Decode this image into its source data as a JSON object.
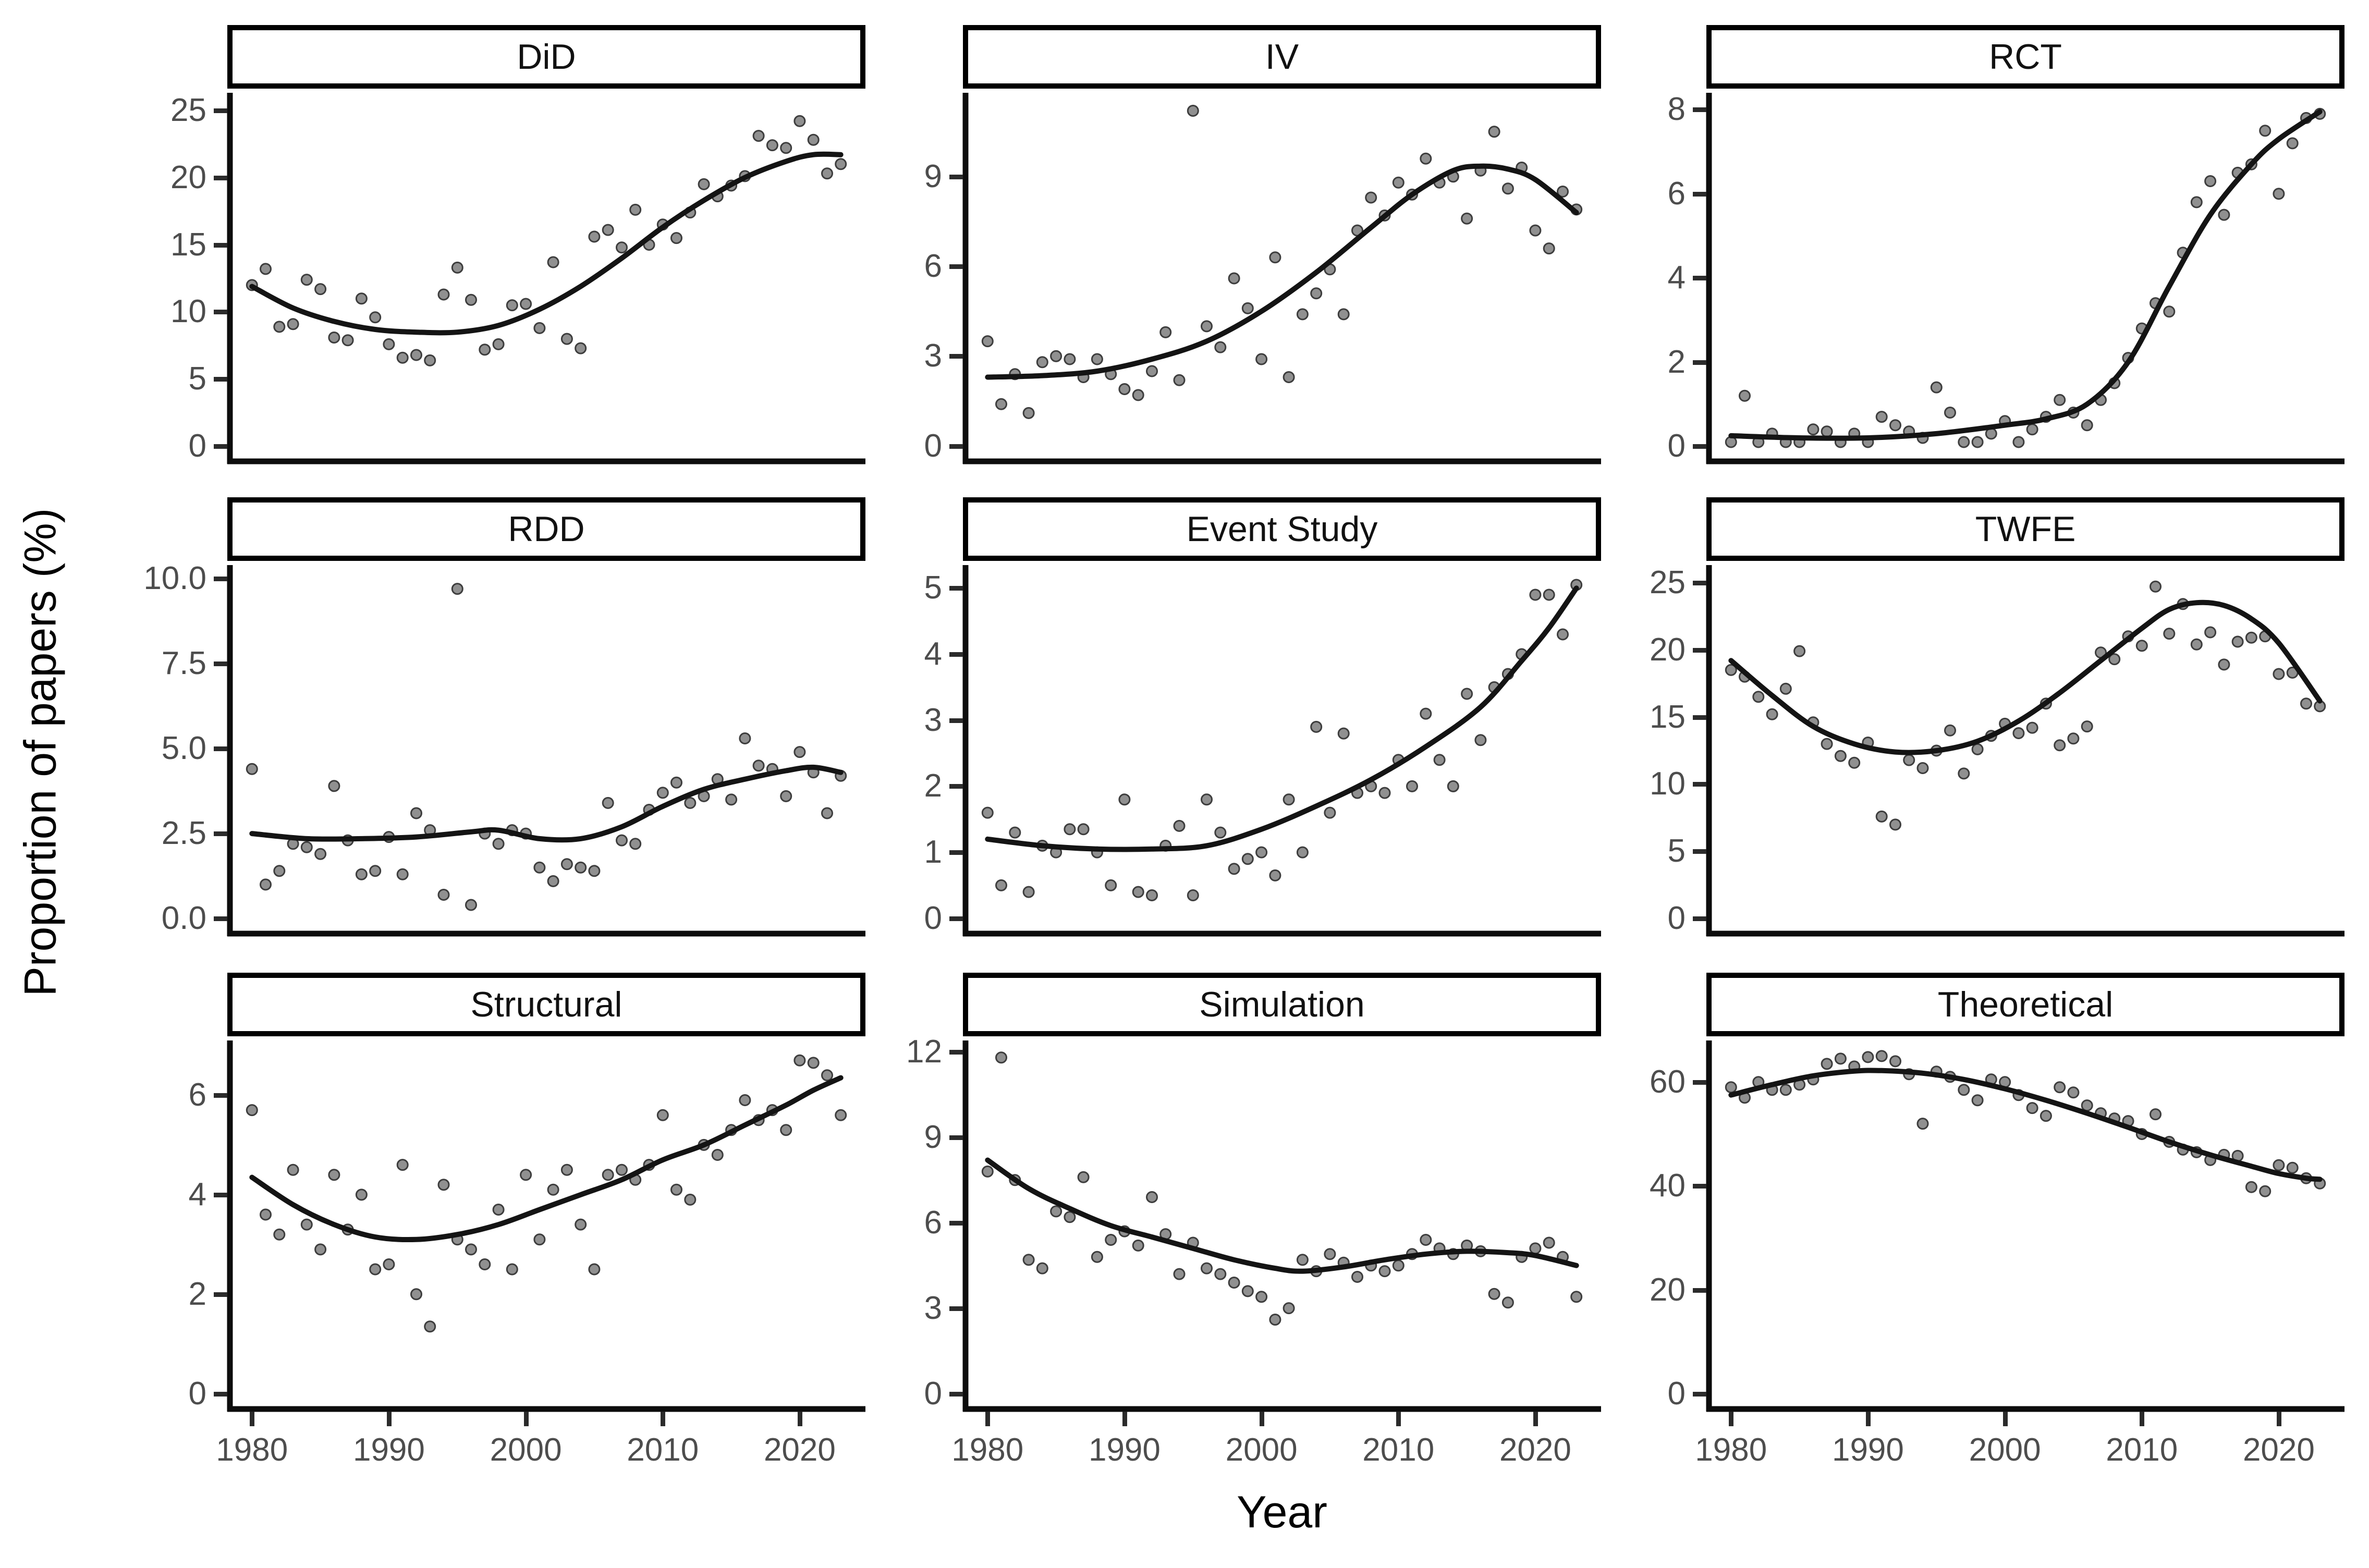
{
  "figure": {
    "y_axis_title": "Proportion of papers (%)",
    "x_axis_title": "Year",
    "colors": {
      "tick_label": "#4d4d4d",
      "tick_mark": "#2b2b2b",
      "axis_line": "#0d0d0d",
      "strip_border": "#000000",
      "strip_bg": "#ffffff",
      "strip_text": "#111111",
      "point_fill": "#8a8a8a",
      "point_stroke": "#3d3d3d",
      "smooth_line": "#141414",
      "background": "#ffffff"
    }
  },
  "chart_data": {
    "type": "scatter",
    "title": "",
    "xlabel": "Year",
    "ylabel": "Proportion of papers (%)",
    "grid": false,
    "legend": "none",
    "smoother": "loess",
    "facet_layout": "3x3",
    "x_ticks": [
      1980,
      1990,
      2000,
      2010,
      2020
    ],
    "xlim": [
      1978.2,
      2024.8
    ],
    "years": [
      1980,
      1981,
      1982,
      1983,
      1984,
      1985,
      1986,
      1987,
      1988,
      1989,
      1990,
      1991,
      1992,
      1993,
      1994,
      1995,
      1996,
      1997,
      1998,
      1999,
      2000,
      2001,
      2002,
      2003,
      2004,
      2005,
      2006,
      2007,
      2008,
      2009,
      2010,
      2011,
      2012,
      2013,
      2014,
      2015,
      2016,
      2017,
      2018,
      2019,
      2020,
      2021,
      2022,
      2023
    ],
    "facets": [
      {
        "label": "DiD",
        "y_ticks": [
          0,
          5,
          10,
          15,
          20,
          25
        ],
        "y_tick_labels": [
          "0",
          "5",
          "10",
          "15",
          "20",
          "25"
        ],
        "ylim": [
          -1.3,
          26.3
        ],
        "points": [
          12.0,
          13.2,
          8.9,
          9.1,
          12.4,
          11.7,
          8.1,
          7.9,
          11.0,
          9.6,
          7.6,
          6.6,
          6.8,
          6.4,
          11.3,
          13.3,
          10.9,
          7.2,
          7.6,
          10.5,
          10.6,
          8.8,
          13.7,
          8.0,
          7.3,
          15.6,
          16.1,
          14.8,
          17.6,
          15.0,
          16.5,
          15.5,
          17.4,
          19.5,
          18.6,
          19.4,
          20.1,
          23.1,
          22.4,
          22.2,
          24.2,
          22.8,
          20.3,
          21.0
        ],
        "curve": [
          [
            1980,
            11.9
          ],
          [
            1983,
            10.3
          ],
          [
            1986,
            9.3
          ],
          [
            1989,
            8.7
          ],
          [
            1992,
            8.5
          ],
          [
            1995,
            8.5
          ],
          [
            1998,
            9.0
          ],
          [
            2001,
            10.2
          ],
          [
            2004,
            11.9
          ],
          [
            2007,
            14.0
          ],
          [
            2010,
            16.3
          ],
          [
            2013,
            18.3
          ],
          [
            2016,
            20.0
          ],
          [
            2019,
            21.2
          ],
          [
            2021,
            21.7
          ],
          [
            2023,
            21.7
          ]
        ]
      },
      {
        "label": "IV",
        "y_ticks": [
          0,
          3,
          6,
          9
        ],
        "y_tick_labels": [
          "0",
          "3",
          "6",
          "9"
        ],
        "ylim": [
          -0.6,
          11.8
        ],
        "points": [
          3.5,
          1.4,
          2.4,
          1.1,
          2.8,
          3.0,
          2.9,
          2.3,
          2.9,
          2.4,
          1.9,
          1.7,
          2.5,
          3.8,
          2.2,
          11.2,
          4.0,
          3.3,
          5.6,
          4.6,
          2.9,
          6.3,
          2.3,
          4.4,
          5.1,
          5.9,
          4.4,
          7.2,
          8.3,
          7.7,
          8.8,
          8.4,
          9.6,
          8.8,
          9.0,
          7.6,
          9.2,
          10.5,
          8.6,
          9.3,
          7.2,
          6.6,
          8.5,
          7.9
        ],
        "curve": [
          [
            1980,
            2.3
          ],
          [
            1984,
            2.35
          ],
          [
            1988,
            2.5
          ],
          [
            1992,
            2.9
          ],
          [
            1996,
            3.5
          ],
          [
            2000,
            4.5
          ],
          [
            2004,
            5.8
          ],
          [
            2008,
            7.3
          ],
          [
            2011,
            8.4
          ],
          [
            2014,
            9.2
          ],
          [
            2016,
            9.35
          ],
          [
            2018,
            9.25
          ],
          [
            2020,
            8.9
          ],
          [
            2023,
            7.8
          ]
        ]
      },
      {
        "label": "RCT",
        "y_ticks": [
          0,
          2,
          4,
          6,
          8
        ],
        "y_tick_labels": [
          "0",
          "2",
          "4",
          "6",
          "8"
        ],
        "ylim": [
          -0.42,
          8.4
        ],
        "points": [
          0.1,
          1.2,
          0.1,
          0.3,
          0.1,
          0.1,
          0.4,
          0.35,
          0.1,
          0.3,
          0.1,
          0.7,
          0.5,
          0.35,
          0.2,
          1.4,
          0.8,
          0.1,
          0.1,
          0.3,
          0.6,
          0.1,
          0.4,
          0.7,
          1.1,
          0.8,
          0.5,
          1.1,
          1.5,
          2.1,
          2.8,
          3.4,
          3.2,
          4.6,
          5.8,
          6.3,
          5.5,
          6.5,
          6.7,
          7.5,
          6.0,
          7.2,
          7.8,
          7.9
        ],
        "curve": [
          [
            1980,
            0.25
          ],
          [
            1985,
            0.2
          ],
          [
            1990,
            0.2
          ],
          [
            1995,
            0.3
          ],
          [
            2000,
            0.5
          ],
          [
            2003,
            0.65
          ],
          [
            2006,
            1.0
          ],
          [
            2009,
            2.0
          ],
          [
            2012,
            3.8
          ],
          [
            2015,
            5.5
          ],
          [
            2018,
            6.7
          ],
          [
            2020,
            7.3
          ],
          [
            2023,
            7.95
          ]
        ]
      },
      {
        "label": "RDD",
        "y_ticks": [
          0,
          2.5,
          5,
          7.5,
          10
        ],
        "y_tick_labels": [
          "0.0",
          "2.5",
          "5.0",
          "7.5",
          "10.0"
        ],
        "ylim": [
          -0.52,
          10.4
        ],
        "points": [
          4.4,
          1.0,
          1.4,
          2.2,
          2.1,
          1.9,
          3.9,
          2.3,
          1.3,
          1.4,
          2.4,
          1.3,
          3.1,
          2.6,
          0.7,
          9.7,
          0.4,
          2.5,
          2.2,
          2.6,
          2.5,
          1.5,
          1.1,
          1.6,
          1.5,
          1.4,
          3.4,
          2.3,
          2.2,
          3.2,
          3.7,
          4.0,
          3.4,
          3.6,
          4.1,
          3.5,
          5.3,
          4.5,
          4.4,
          3.6,
          4.9,
          4.3,
          3.1,
          4.2
        ],
        "curve": [
          [
            1980,
            2.5
          ],
          [
            1984,
            2.35
          ],
          [
            1988,
            2.35
          ],
          [
            1992,
            2.4
          ],
          [
            1996,
            2.55
          ],
          [
            1998,
            2.6
          ],
          [
            2001,
            2.35
          ],
          [
            2004,
            2.35
          ],
          [
            2007,
            2.7
          ],
          [
            2010,
            3.3
          ],
          [
            2013,
            3.8
          ],
          [
            2016,
            4.1
          ],
          [
            2019,
            4.35
          ],
          [
            2021,
            4.45
          ],
          [
            2023,
            4.3
          ]
        ]
      },
      {
        "label": "Event Study",
        "y_ticks": [
          0,
          1,
          2,
          3,
          4,
          5
        ],
        "y_tick_labels": [
          "0",
          "1",
          "2",
          "3",
          "4",
          "5"
        ],
        "ylim": [
          -0.27,
          5.35
        ],
        "points": [
          1.6,
          0.5,
          1.3,
          0.4,
          1.1,
          1.0,
          1.35,
          1.35,
          1.0,
          0.5,
          1.8,
          0.4,
          0.35,
          1.1,
          1.4,
          0.35,
          1.8,
          1.3,
          0.75,
          0.9,
          1.0,
          0.65,
          1.8,
          1.0,
          2.9,
          1.6,
          2.8,
          1.9,
          2.0,
          1.9,
          2.4,
          2.0,
          3.1,
          2.4,
          2.0,
          3.4,
          2.7,
          3.5,
          3.7,
          4.0,
          4.9,
          4.9,
          4.3,
          5.05
        ],
        "curve": [
          [
            1980,
            1.2
          ],
          [
            1984,
            1.1
          ],
          [
            1988,
            1.05
          ],
          [
            1992,
            1.05
          ],
          [
            1996,
            1.1
          ],
          [
            2000,
            1.35
          ],
          [
            2004,
            1.7
          ],
          [
            2008,
            2.1
          ],
          [
            2012,
            2.6
          ],
          [
            2016,
            3.2
          ],
          [
            2019,
            3.9
          ],
          [
            2021,
            4.4
          ],
          [
            2023,
            5.0
          ]
        ]
      },
      {
        "label": "TWFE",
        "y_ticks": [
          0,
          5,
          10,
          15,
          20,
          25
        ],
        "y_tick_labels": [
          "0",
          "5",
          "10",
          "15",
          "20",
          "25"
        ],
        "ylim": [
          -1.3,
          26.3
        ],
        "points": [
          18.5,
          18.0,
          16.5,
          15.2,
          17.1,
          19.9,
          14.6,
          13.0,
          12.1,
          11.6,
          13.1,
          7.6,
          7.0,
          11.8,
          11.2,
          12.5,
          14.0,
          10.8,
          12.6,
          13.6,
          14.5,
          13.8,
          14.2,
          16.0,
          12.9,
          13.4,
          14.3,
          19.8,
          19.3,
          21.0,
          20.3,
          24.7,
          21.2,
          23.4,
          20.4,
          21.3,
          18.9,
          20.6,
          20.9,
          21.0,
          18.2,
          18.3,
          16.0,
          15.8
        ],
        "curve": [
          [
            1980,
            19.2
          ],
          [
            1983,
            16.6
          ],
          [
            1986,
            14.3
          ],
          [
            1989,
            13.0
          ],
          [
            1992,
            12.4
          ],
          [
            1995,
            12.5
          ],
          [
            1998,
            13.2
          ],
          [
            2001,
            14.7
          ],
          [
            2004,
            16.8
          ],
          [
            2007,
            19.2
          ],
          [
            2010,
            21.6
          ],
          [
            2012,
            23.0
          ],
          [
            2014,
            23.5
          ],
          [
            2016,
            23.3
          ],
          [
            2018,
            22.3
          ],
          [
            2020,
            20.5
          ],
          [
            2023,
            16.2
          ]
        ]
      },
      {
        "label": "Structural",
        "y_ticks": [
          0,
          2,
          4,
          6
        ],
        "y_tick_labels": [
          "0",
          "2",
          "4",
          "6"
        ],
        "ylim": [
          -0.36,
          7.1
        ],
        "points": [
          5.7,
          3.6,
          3.2,
          4.5,
          3.4,
          2.9,
          4.4,
          3.3,
          4.0,
          2.5,
          2.6,
          4.6,
          2.0,
          1.35,
          4.2,
          3.1,
          2.9,
          2.6,
          3.7,
          2.5,
          4.4,
          3.1,
          4.1,
          4.5,
          3.4,
          2.5,
          4.4,
          4.5,
          4.3,
          4.6,
          5.6,
          4.1,
          3.9,
          5.0,
          4.8,
          5.3,
          5.9,
          5.5,
          5.7,
          5.3,
          6.7,
          6.65,
          6.4,
          5.6
        ],
        "curve": [
          [
            1980,
            4.35
          ],
          [
            1983,
            3.8
          ],
          [
            1986,
            3.4
          ],
          [
            1989,
            3.15
          ],
          [
            1992,
            3.1
          ],
          [
            1995,
            3.2
          ],
          [
            1998,
            3.4
          ],
          [
            2001,
            3.7
          ],
          [
            2004,
            4.0
          ],
          [
            2007,
            4.3
          ],
          [
            2010,
            4.7
          ],
          [
            2013,
            5.0
          ],
          [
            2016,
            5.4
          ],
          [
            2019,
            5.8
          ],
          [
            2021,
            6.1
          ],
          [
            2023,
            6.35
          ]
        ]
      },
      {
        "label": "Simulation",
        "y_ticks": [
          0,
          3,
          6,
          9,
          12
        ],
        "y_tick_labels": [
          "0",
          "3",
          "6",
          "9",
          "12"
        ],
        "ylim": [
          -0.63,
          12.4
        ],
        "points": [
          7.8,
          11.8,
          7.5,
          4.7,
          4.4,
          6.4,
          6.2,
          7.6,
          4.8,
          5.4,
          5.7,
          5.2,
          6.9,
          5.6,
          4.2,
          5.3,
          4.4,
          4.2,
          3.9,
          3.6,
          3.4,
          2.6,
          3.0,
          4.7,
          4.3,
          4.9,
          4.6,
          4.1,
          4.5,
          4.3,
          4.5,
          4.9,
          5.4,
          5.1,
          4.9,
          5.2,
          5.0,
          3.5,
          3.2,
          4.8,
          5.1,
          5.3,
          4.8,
          3.4
        ],
        "curve": [
          [
            1980,
            8.2
          ],
          [
            1983,
            7.2
          ],
          [
            1986,
            6.5
          ],
          [
            1989,
            5.9
          ],
          [
            1992,
            5.5
          ],
          [
            1995,
            5.1
          ],
          [
            1998,
            4.7
          ],
          [
            2001,
            4.4
          ],
          [
            2003,
            4.3
          ],
          [
            2006,
            4.45
          ],
          [
            2009,
            4.7
          ],
          [
            2012,
            4.9
          ],
          [
            2015,
            5.0
          ],
          [
            2018,
            4.95
          ],
          [
            2020,
            4.85
          ],
          [
            2023,
            4.5
          ]
        ]
      },
      {
        "label": "Theoretical",
        "y_ticks": [
          0,
          20,
          40,
          60
        ],
        "y_tick_labels": [
          "0",
          "20",
          "40",
          "60"
        ],
        "ylim": [
          -3.4,
          68
        ],
        "points": [
          59,
          57,
          60,
          58.5,
          58.5,
          59.5,
          60.5,
          63.5,
          64.5,
          63,
          64.8,
          65,
          64,
          61.5,
          52,
          62,
          61,
          58.5,
          56.5,
          60.5,
          60,
          57.5,
          55,
          53.5,
          59,
          58,
          55.5,
          54,
          53,
          52.5,
          50,
          53.8,
          48.5,
          47,
          46.5,
          45,
          46,
          45.8,
          39.8,
          39,
          44,
          43.5,
          41.5,
          40.5
        ],
        "curve": [
          [
            1980,
            57.5
          ],
          [
            1983,
            59.5
          ],
          [
            1986,
            61.2
          ],
          [
            1989,
            62.1
          ],
          [
            1991,
            62.2
          ],
          [
            1994,
            61.7
          ],
          [
            1997,
            60.5
          ],
          [
            2000,
            58.7
          ],
          [
            2003,
            56.5
          ],
          [
            2006,
            54.0
          ],
          [
            2009,
            51.3
          ],
          [
            2012,
            48.5
          ],
          [
            2015,
            46.0
          ],
          [
            2018,
            43.8
          ],
          [
            2020,
            42.4
          ],
          [
            2022,
            41.5
          ],
          [
            2023,
            41.3
          ]
        ]
      }
    ]
  }
}
